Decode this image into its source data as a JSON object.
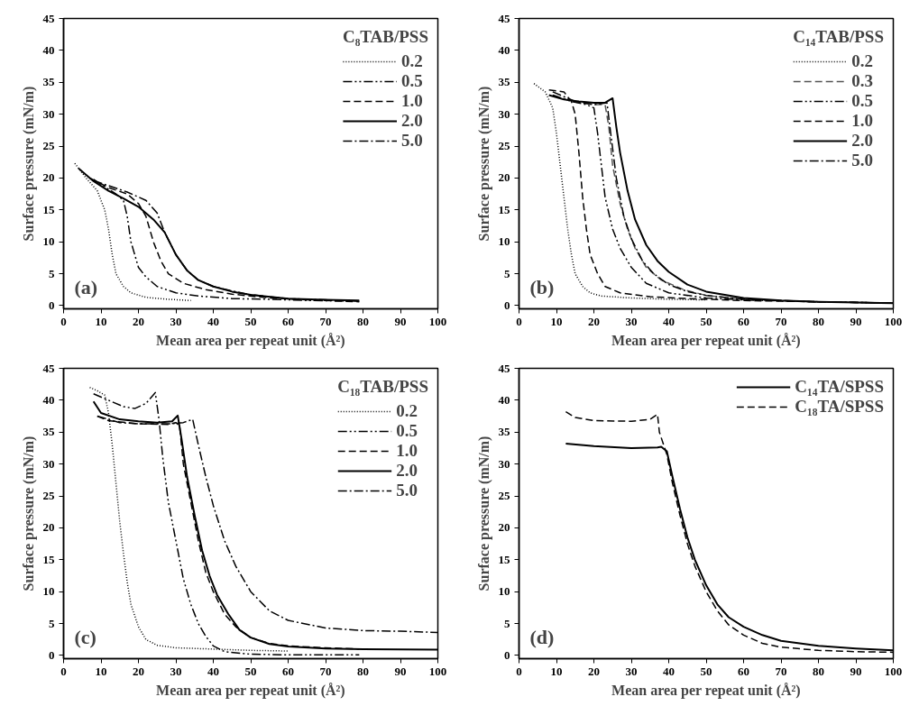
{
  "chart_data": [
    {
      "type": "line",
      "xlabel": "Mean area per repeat unit (Å²)",
      "ylabel": "Surface pressure (mN/m)",
      "legend_title": "C₈TAB/PSS",
      "legend": "top right",
      "annotations": [
        "(a)"
      ],
      "xlim": [
        0,
        100
      ],
      "ylim": [
        -0.5,
        45
      ],
      "xticks": [
        0,
        10,
        20,
        30,
        40,
        50,
        60,
        70,
        80,
        90,
        100
      ],
      "yticks": [
        0,
        5,
        10,
        15,
        20,
        25,
        30,
        35,
        40,
        45
      ],
      "grid": false,
      "series": [
        {
          "name": "0.2",
          "color": "#000000",
          "line_style": "dotted",
          "x": [
            3,
            6,
            9,
            11,
            12,
            13,
            14,
            16,
            18,
            22,
            28,
            34
          ],
          "values": [
            22.3,
            20,
            18,
            15,
            12,
            8,
            5,
            3,
            2,
            1.3,
            1,
            0.8
          ]
        },
        {
          "name": "0.5",
          "color": "#000000",
          "line_style": "dashdotdot",
          "x": [
            8,
            10,
            14,
            16,
            17,
            18,
            20,
            22,
            25,
            30,
            36,
            45,
            55,
            66,
            79
          ],
          "values": [
            19.8,
            19,
            17.5,
            16.5,
            14,
            10,
            6,
            4.5,
            3,
            2,
            1.5,
            1.1,
            1,
            0.8,
            0.7
          ]
        },
        {
          "name": "1.0",
          "color": "#000000",
          "line_style": "dashed",
          "x": [
            7,
            12,
            17,
            20,
            22,
            24,
            26,
            28,
            32,
            38,
            45,
            55,
            65,
            79
          ],
          "values": [
            20,
            18.5,
            17.5,
            16,
            14,
            10,
            7,
            5,
            3.5,
            2.5,
            1.8,
            1.2,
            0.9,
            0.6
          ]
        },
        {
          "name": "2.0",
          "color": "#000000",
          "line_style": "solid",
          "x": [
            4,
            8,
            12,
            16,
            20,
            24,
            27,
            30,
            33,
            36,
            40,
            45,
            50,
            60,
            70,
            79
          ],
          "values": [
            21.5,
            19.5,
            18,
            16.8,
            15.5,
            13.5,
            11.5,
            8,
            5.5,
            4,
            3,
            2.2,
            1.7,
            1.1,
            0.9,
            0.8
          ]
        },
        {
          "name": "5.0",
          "color": "#000000",
          "line_style": "dashdot",
          "x": [
            8,
            12,
            17,
            22,
            25,
            27,
            30,
            33,
            36,
            40,
            45,
            50,
            60,
            70,
            78
          ],
          "values": [
            19.6,
            18.8,
            17.8,
            16.5,
            14.5,
            11.5,
            8,
            5.5,
            4,
            3,
            2.3,
            1.7,
            1.1,
            0.9,
            0.7
          ]
        }
      ]
    },
    {
      "type": "line",
      "xlabel": "Mean area per repeat unit (Å²)",
      "ylabel": "Surface pressure (mN/m)",
      "legend_title": "C₁₄TAB/PSS",
      "legend": "top right",
      "annotations": [
        "(b)"
      ],
      "xlim": [
        0,
        100
      ],
      "ylim": [
        -0.5,
        45
      ],
      "xticks": [
        0,
        10,
        20,
        30,
        40,
        50,
        60,
        70,
        80,
        90,
        100
      ],
      "yticks": [
        0,
        5,
        10,
        15,
        20,
        25,
        30,
        35,
        40,
        45
      ],
      "grid": false,
      "series": [
        {
          "name": "0.2",
          "color": "#000000",
          "line_style": "dotted",
          "x": [
            4,
            7,
            9,
            10,
            11,
            12,
            13,
            14,
            15,
            17,
            19,
            22,
            30,
            40,
            50
          ],
          "values": [
            34.8,
            33.5,
            31,
            27,
            22,
            17,
            12,
            8,
            5,
            3,
            2,
            1.5,
            1.2,
            1.0,
            0.9
          ]
        },
        {
          "name": "0.3",
          "color": "#555555",
          "line_style": "dashed",
          "x": [
            9,
            14,
            20,
            23,
            24,
            25,
            27,
            29,
            31,
            34,
            38,
            44,
            50,
            60,
            80,
            100
          ],
          "values": [
            33,
            32,
            31.5,
            31.5,
            28,
            22,
            16,
            12,
            9,
            6,
            4,
            2.5,
            1.6,
            1,
            0.6,
            0.4
          ]
        },
        {
          "name": "0.5",
          "color": "#000000",
          "line_style": "dashdotdot",
          "x": [
            9,
            14,
            18,
            20,
            21,
            22,
            23,
            25,
            27,
            30,
            34,
            40,
            50,
            60,
            80,
            100
          ],
          "values": [
            33,
            32,
            31.5,
            31,
            27,
            22,
            17,
            12,
            9,
            6,
            3.5,
            2,
            1.2,
            0.9,
            0.6,
            0.4
          ]
        },
        {
          "name": "1.0",
          "color": "#000000",
          "line_style": "dashed",
          "x": [
            8,
            12,
            14,
            15,
            16,
            17,
            18,
            19,
            21,
            23,
            27,
            35,
            45,
            60,
            80,
            100
          ],
          "values": [
            33.8,
            33.5,
            32,
            30,
            24,
            17,
            12,
            8,
            5,
            3,
            2,
            1.4,
            1.1,
            0.8,
            0.6,
            0.4
          ]
        },
        {
          "name": "2.0",
          "color": "#000000",
          "line_style": "solid",
          "x": [
            8,
            12,
            16,
            20,
            23,
            25,
            26,
            27,
            29,
            31,
            34,
            37,
            40,
            45,
            50,
            60,
            70,
            80,
            100
          ],
          "values": [
            33,
            32.3,
            32,
            31.8,
            31.8,
            32.5,
            28,
            24,
            18,
            13.5,
            9.5,
            7,
            5.3,
            3.3,
            2.2,
            1.2,
            0.8,
            0.6,
            0.4
          ]
        },
        {
          "name": "5.0",
          "color": "#000000",
          "line_style": "dashdot",
          "x": [
            9,
            15,
            20,
            23.5,
            24.5,
            26,
            28,
            30,
            33,
            36,
            40,
            45,
            50,
            60,
            80,
            100
          ],
          "values": [
            33.5,
            32,
            31.5,
            31.8,
            27,
            20,
            14,
            10.5,
            7,
            5,
            3.3,
            2.2,
            1.6,
            1,
            0.6,
            0.4
          ]
        }
      ]
    },
    {
      "type": "line",
      "xlabel": "Mean area per repeat unit (Å²)",
      "ylabel": "Surface pressure (mN/m)",
      "legend_title": "C₁₈TAB/PSS",
      "legend": "top right",
      "annotations": [
        "(c)"
      ],
      "xlim": [
        0,
        100
      ],
      "ylim": [
        -0.5,
        45
      ],
      "xticks": [
        0,
        10,
        20,
        30,
        40,
        50,
        60,
        70,
        80,
        90,
        100
      ],
      "yticks": [
        0,
        5,
        10,
        15,
        20,
        25,
        30,
        35,
        40,
        45
      ],
      "grid": false,
      "series": [
        {
          "name": "0.2",
          "color": "#000000",
          "line_style": "dotted",
          "x": [
            7,
            9,
            11,
            12,
            13,
            14,
            15,
            16,
            17,
            18,
            20,
            22,
            25,
            30,
            40,
            50,
            60
          ],
          "values": [
            42,
            41.5,
            40.8,
            38,
            33,
            27,
            21,
            16,
            11.5,
            8,
            4.5,
            2.5,
            1.6,
            1.2,
            1,
            0.8,
            0.7
          ]
        },
        {
          "name": "0.5",
          "color": "#000000",
          "line_style": "dashdotdot",
          "x": [
            8,
            12,
            16,
            19,
            22,
            24.5,
            25.5,
            26.5,
            28,
            30,
            32,
            34,
            36,
            38,
            40,
            43,
            50,
            60,
            79
          ],
          "values": [
            41,
            40,
            39,
            38.7,
            39.5,
            41.2,
            37,
            31,
            24,
            18,
            12,
            8,
            5,
            3,
            1.5,
            0.6,
            0.2,
            0.1,
            0.1
          ]
        },
        {
          "name": "1.0",
          "color": "#000000",
          "line_style": "dashed",
          "x": [
            9,
            12,
            20,
            28,
            30,
            31,
            32,
            34,
            36,
            38,
            40,
            43,
            46,
            50,
            55,
            60,
            70,
            79
          ],
          "values": [
            37.5,
            36.8,
            36.3,
            36.2,
            36.5,
            36,
            30,
            24,
            18,
            13,
            10,
            6.5,
            4.5,
            2.8,
            1.9,
            1.5,
            1.2,
            1.0
          ]
        },
        {
          "name": "2.0",
          "color": "#000000",
          "line_style": "solid",
          "x": [
            8,
            10,
            15,
            20,
            25,
            29,
            30.5,
            31.5,
            33,
            35,
            37,
            39,
            41,
            44,
            47,
            50,
            55,
            60,
            70,
            80,
            100
          ],
          "values": [
            39.8,
            38,
            37,
            36.7,
            36.5,
            36.7,
            37.6,
            34,
            28,
            22,
            16.5,
            12.5,
            9.5,
            6.5,
            4,
            2.8,
            1.8,
            1.4,
            1.1,
            1,
            0.9
          ]
        },
        {
          "name": "5.0",
          "color": "#000000",
          "line_style": "dashdot",
          "x": [
            9,
            15,
            20,
            28,
            32,
            34.5,
            36,
            38,
            40,
            43,
            46,
            50,
            55,
            60,
            70,
            80,
            90,
            100
          ],
          "values": [
            37.5,
            36.5,
            36.3,
            36.3,
            36.5,
            37,
            33,
            28,
            23.5,
            18,
            14,
            10,
            7,
            5.5,
            4.3,
            3.9,
            3.8,
            3.6
          ]
        }
      ]
    },
    {
      "type": "line",
      "xlabel": "Mean area per repeat unit (Å²)",
      "ylabel": "Surface pressure (mN/m)",
      "legend": "top right",
      "annotations": [
        "(d)"
      ],
      "xlim": [
        0,
        100
      ],
      "ylim": [
        -0.5,
        45
      ],
      "xticks": [
        0,
        10,
        20,
        30,
        40,
        50,
        60,
        70,
        80,
        90,
        100
      ],
      "yticks": [
        0,
        5,
        10,
        15,
        20,
        25,
        30,
        35,
        40,
        45
      ],
      "grid": false,
      "series": [
        {
          "name": "C₁₄TA/SPSS",
          "color": "#000000",
          "line_style": "solid",
          "x": [
            12.5,
            20,
            30,
            37,
            38,
            39.5,
            41,
            43,
            45,
            47,
            50,
            53,
            56,
            60,
            65,
            70,
            80,
            90,
            100
          ],
          "values": [
            33.2,
            32.8,
            32.5,
            32.6,
            32.7,
            32,
            28,
            23,
            18.5,
            15,
            11,
            8,
            6,
            4.5,
            3.2,
            2.3,
            1.5,
            1.1,
            0.8
          ]
        },
        {
          "name": "C₁₈TA/SPSS",
          "color": "#000000",
          "line_style": "dashed",
          "x": [
            12.5,
            15,
            20,
            30,
            35,
            37,
            37.5,
            39.5,
            41,
            43,
            45,
            47,
            50,
            53,
            56,
            60,
            65,
            70,
            80,
            90,
            100
          ],
          "values": [
            38.2,
            37.3,
            36.8,
            36.7,
            37,
            37.8,
            35,
            31.5,
            27,
            22,
            17.5,
            14,
            10,
            7,
            4.8,
            3.2,
            1.9,
            1.3,
            0.8,
            0.6,
            0.5
          ]
        }
      ]
    }
  ]
}
